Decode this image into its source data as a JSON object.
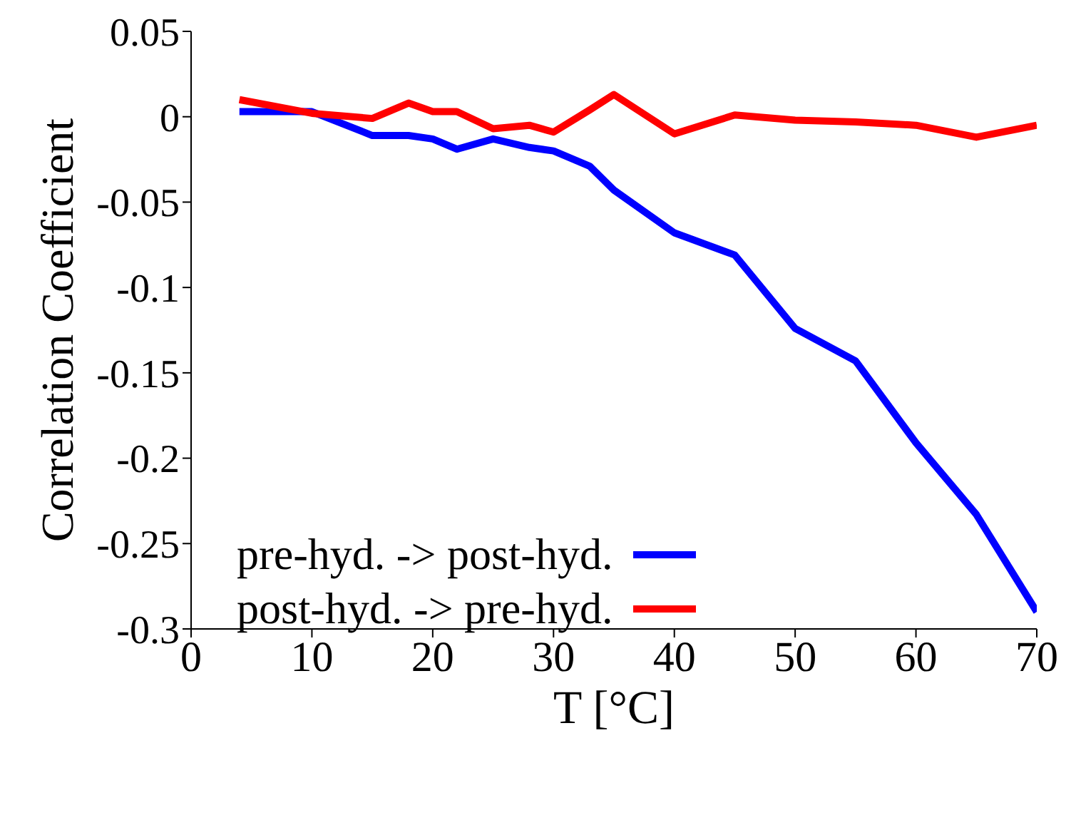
{
  "chart_data": {
    "type": "line",
    "xlabel": "T [°C]",
    "ylabel": "Correlation Coefficient",
    "x": [
      4,
      10,
      15,
      18,
      20,
      22,
      25,
      28,
      30,
      33,
      35,
      40,
      45,
      50,
      55,
      60,
      65,
      70
    ],
    "series": [
      {
        "name": "pre-hyd. -> post-hyd.",
        "color": "#0000ff",
        "values": [
          0.003,
          0.003,
          -0.011,
          -0.011,
          -0.013,
          -0.019,
          -0.013,
          -0.018,
          -0.02,
          -0.029,
          -0.043,
          -0.068,
          -0.081,
          -0.124,
          -0.143,
          -0.191,
          -0.233,
          -0.29
        ]
      },
      {
        "name": "post-hyd. -> pre-hyd.",
        "color": "#ff0000",
        "values": [
          0.01,
          0.002,
          -0.001,
          0.008,
          0.003,
          0.003,
          -0.007,
          -0.005,
          -0.009,
          0.004,
          0.013,
          -0.01,
          0.001,
          -0.002,
          -0.003,
          -0.005,
          -0.012,
          -0.005
        ]
      }
    ],
    "xlim": [
      0,
      70
    ],
    "xticks": [
      0,
      10,
      20,
      30,
      40,
      50,
      60,
      70
    ],
    "ylim": [
      -0.3,
      0.05
    ],
    "yticks": [
      -0.3,
      -0.25,
      -0.2,
      -0.15,
      -0.1,
      -0.05,
      0,
      0.05
    ],
    "grid": false,
    "legend": "bottom left",
    "marker": "none",
    "line_style": "solid"
  }
}
